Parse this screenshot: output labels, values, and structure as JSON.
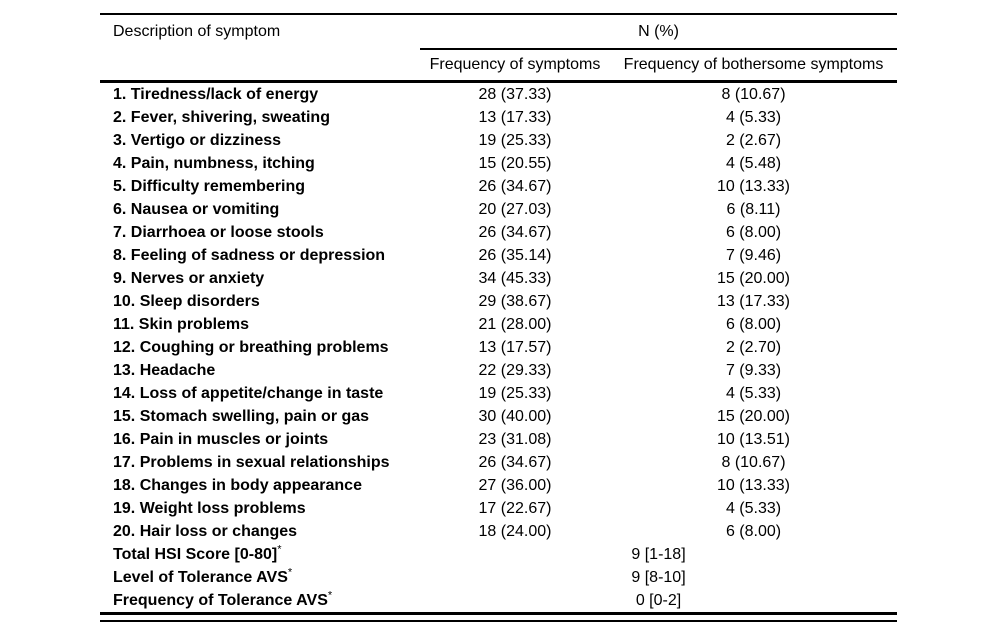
{
  "page": {
    "background_color": "#ffffff",
    "text_color": "#000000"
  },
  "table": {
    "header": {
      "col1": "Description of symptom",
      "group": "N (%)",
      "col2": "Frequency of symptoms",
      "col3": "Frequency of bothersome symptoms"
    },
    "rows": [
      {
        "label": "1. Tiredness/lack of energy",
        "frequency": "28 (37.33)",
        "bothersome": "8 (10.67)"
      },
      {
        "label": "2. Fever, shivering, sweating",
        "frequency": "13 (17.33)",
        "bothersome": "4 (5.33)"
      },
      {
        "label": "3. Vertigo or dizziness",
        "frequency": "19 (25.33)",
        "bothersome": "2 (2.67)"
      },
      {
        "label": "4. Pain, numbness, itching",
        "frequency": "15 (20.55)",
        "bothersome": "4 (5.48)"
      },
      {
        "label": "5. Difficulty remembering",
        "frequency": "26 (34.67)",
        "bothersome": "10 (13.33)"
      },
      {
        "label": "6. Nausea or vomiting",
        "frequency": "20 (27.03)",
        "bothersome": "6 (8.11)"
      },
      {
        "label": "7. Diarrhoea or loose stools",
        "frequency": "26 (34.67)",
        "bothersome": "6 (8.00)"
      },
      {
        "label": "8. Feeling of sadness or depression",
        "frequency": "26 (35.14)",
        "bothersome": "7 (9.46)"
      },
      {
        "label": "9. Nerves or anxiety",
        "frequency": "34 (45.33)",
        "bothersome": "15 (20.00)"
      },
      {
        "label": "10. Sleep disorders",
        "frequency": "29 (38.67)",
        "bothersome": "13 (17.33)"
      },
      {
        "label": "11. Skin problems",
        "frequency": "21 (28.00)",
        "bothersome": "6 (8.00)"
      },
      {
        "label": "12. Coughing or breathing problems",
        "frequency": "13 (17.57)",
        "bothersome": "2 (2.70)"
      },
      {
        "label": "13. Headache",
        "frequency": "22 (29.33)",
        "bothersome": "7 (9.33)"
      },
      {
        "label": "14. Loss of appetite/change in taste",
        "frequency": "19 (25.33)",
        "bothersome": "4 (5.33)"
      },
      {
        "label": "15. Stomach swelling, pain or gas",
        "frequency": "30 (40.00)",
        "bothersome": "15 (20.00)"
      },
      {
        "label": "16. Pain in muscles or joints",
        "frequency": "23 (31.08)",
        "bothersome": "10 (13.51)"
      },
      {
        "label": "17. Problems in sexual relationships",
        "frequency": "26 (34.67)",
        "bothersome": "8 (10.67)"
      },
      {
        "label": "18. Changes in body appearance",
        "frequency": "27 (36.00)",
        "bothersome": "10 (13.33)"
      },
      {
        "label": "19. Weight loss problems",
        "frequency": "17 (22.67)",
        "bothersome": "4 (5.33)"
      },
      {
        "label": "20. Hair loss or changes",
        "frequency": "18 (24.00)",
        "bothersome": "6 (8.00)"
      }
    ],
    "summary_rows": [
      {
        "label": "Total HSI Score [0-80]",
        "footnote": "*",
        "value": "9 [1-18]"
      },
      {
        "label": "Level of Tolerance AVS",
        "footnote": "*",
        "value": "9 [8-10]"
      },
      {
        "label": "Frequency of Tolerance AVS",
        "footnote": "*",
        "value": "0 [0-2]"
      }
    ]
  }
}
